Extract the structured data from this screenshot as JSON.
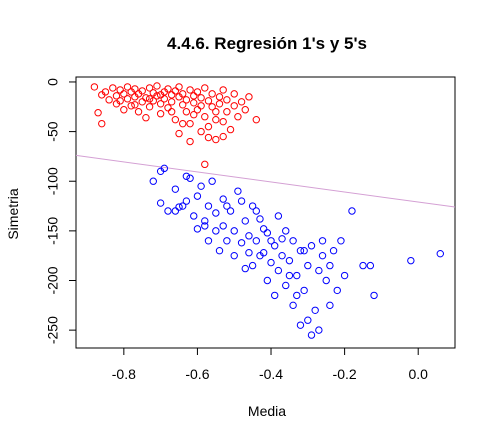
{
  "chart_data": {
    "type": "scatter",
    "title": "4.4.6. Regresión 1's y 5's",
    "xlabel": "Media",
    "ylabel": "Simetria",
    "xlim": [
      -0.93,
      0.1
    ],
    "ylim": [
      -268,
      5
    ],
    "x_ticks": [
      -0.8,
      -0.6,
      -0.4,
      -0.2,
      0.0
    ],
    "x_tick_labels": [
      "-0.8",
      "-0.6",
      "-0.4",
      "-0.2",
      "0.0"
    ],
    "y_ticks": [
      0,
      -50,
      -100,
      -150,
      -200,
      -250
    ],
    "y_tick_labels": [
      "0",
      "-50",
      "-100",
      "-150",
      "-200",
      "-250"
    ],
    "grid": false,
    "regression_line": {
      "color": "#d4a0d4",
      "points": [
        [
          -0.93,
          -74
        ],
        [
          0.1,
          -126
        ]
      ]
    },
    "series": [
      {
        "color": "#ff0000",
        "marker": "open-circle",
        "points": [
          [
            -0.88,
            -5
          ],
          [
            -0.87,
            -31
          ],
          [
            -0.86,
            -42
          ],
          [
            -0.85,
            -10
          ],
          [
            -0.84,
            -18
          ],
          [
            -0.83,
            -6
          ],
          [
            -0.82,
            -14
          ],
          [
            -0.82,
            -22
          ],
          [
            -0.81,
            -8
          ],
          [
            -0.8,
            -12
          ],
          [
            -0.8,
            -28
          ],
          [
            -0.79,
            -5
          ],
          [
            -0.79,
            -17
          ],
          [
            -0.78,
            -10
          ],
          [
            -0.78,
            -24
          ],
          [
            -0.77,
            -7
          ],
          [
            -0.77,
            -15
          ],
          [
            -0.76,
            -30
          ],
          [
            -0.76,
            -12
          ],
          [
            -0.75,
            -20
          ],
          [
            -0.75,
            -9
          ],
          [
            -0.74,
            -16
          ],
          [
            -0.74,
            -36
          ],
          [
            -0.73,
            -6
          ],
          [
            -0.73,
            -25
          ],
          [
            -0.72,
            -11
          ],
          [
            -0.72,
            -19
          ],
          [
            -0.71,
            -14
          ],
          [
            -0.71,
            -4
          ],
          [
            -0.7,
            -22
          ],
          [
            -0.7,
            -32
          ],
          [
            -0.69,
            -10
          ],
          [
            -0.69,
            -17
          ],
          [
            -0.68,
            -7
          ],
          [
            -0.68,
            -26
          ],
          [
            -0.67,
            -13
          ],
          [
            -0.67,
            -20
          ],
          [
            -0.66,
            -9
          ],
          [
            -0.66,
            -38
          ],
          [
            -0.65,
            -15
          ],
          [
            -0.65,
            -5
          ],
          [
            -0.64,
            -23
          ],
          [
            -0.64,
            -12
          ],
          [
            -0.63,
            -30
          ],
          [
            -0.63,
            -18
          ],
          [
            -0.62,
            -8
          ],
          [
            -0.62,
            -42
          ],
          [
            -0.61,
            -14
          ],
          [
            -0.61,
            -21
          ],
          [
            -0.6,
            -10
          ],
          [
            -0.6,
            -28
          ],
          [
            -0.59,
            -50
          ],
          [
            -0.59,
            -16
          ],
          [
            -0.58,
            -35
          ],
          [
            -0.58,
            -6
          ],
          [
            -0.57,
            -19
          ],
          [
            -0.57,
            -45
          ],
          [
            -0.56,
            -25
          ],
          [
            -0.56,
            -12
          ],
          [
            -0.55,
            -38
          ],
          [
            -0.55,
            -58
          ],
          [
            -0.54,
            -22
          ],
          [
            -0.54,
            -15
          ],
          [
            -0.53,
            -8
          ],
          [
            -0.53,
            -40
          ],
          [
            -0.52,
            -30
          ],
          [
            -0.52,
            -18
          ],
          [
            -0.51,
            -48
          ],
          [
            -0.5,
            -24
          ],
          [
            -0.5,
            -12
          ],
          [
            -0.49,
            -35
          ],
          [
            -0.48,
            -20
          ],
          [
            -0.47,
            -28
          ],
          [
            -0.46,
            -15
          ],
          [
            -0.44,
            -38
          ],
          [
            -0.86,
            -13
          ],
          [
            -0.81,
            -19
          ],
          [
            -0.77,
            -23
          ],
          [
            -0.73,
            -17
          ],
          [
            -0.7,
            -13
          ],
          [
            -0.67,
            -30
          ],
          [
            -0.64,
            -42
          ],
          [
            -0.61,
            -33
          ],
          [
            -0.59,
            -24
          ],
          [
            -0.57,
            -56
          ],
          [
            -0.55,
            -30
          ],
          [
            -0.58,
            -83
          ],
          [
            -0.65,
            -52
          ],
          [
            -0.62,
            -60
          ],
          [
            -0.53,
            -55
          ]
        ]
      },
      {
        "color": "#0000ff",
        "marker": "open-circle",
        "points": [
          [
            -0.72,
            -100
          ],
          [
            -0.7,
            -90
          ],
          [
            -0.69,
            -87
          ],
          [
            -0.7,
            -122
          ],
          [
            -0.68,
            -130
          ],
          [
            -0.66,
            -108
          ],
          [
            -0.65,
            -126
          ],
          [
            -0.64,
            -125
          ],
          [
            -0.63,
            -120
          ],
          [
            -0.62,
            -97
          ],
          [
            -0.61,
            -135
          ],
          [
            -0.6,
            -148
          ],
          [
            -0.6,
            -115
          ],
          [
            -0.59,
            -105
          ],
          [
            -0.58,
            -140
          ],
          [
            -0.57,
            -125
          ],
          [
            -0.57,
            -160
          ],
          [
            -0.56,
            -100
          ],
          [
            -0.55,
            -150
          ],
          [
            -0.55,
            -132
          ],
          [
            -0.54,
            -170
          ],
          [
            -0.53,
            -145
          ],
          [
            -0.53,
            -118
          ],
          [
            -0.52,
            -160
          ],
          [
            -0.51,
            -130
          ],
          [
            -0.5,
            -175
          ],
          [
            -0.5,
            -150
          ],
          [
            -0.49,
            -110
          ],
          [
            -0.48,
            -162
          ],
          [
            -0.47,
            -140
          ],
          [
            -0.47,
            -188
          ],
          [
            -0.46,
            -155
          ],
          [
            -0.45,
            -125
          ],
          [
            -0.45,
            -185
          ],
          [
            -0.44,
            -160
          ],
          [
            -0.43,
            -138
          ],
          [
            -0.42,
            -172
          ],
          [
            -0.42,
            -148
          ],
          [
            -0.41,
            -200
          ],
          [
            -0.4,
            -182
          ],
          [
            -0.4,
            -160
          ],
          [
            -0.39,
            -165
          ],
          [
            -0.38,
            -135
          ],
          [
            -0.38,
            -190
          ],
          [
            -0.37,
            -175
          ],
          [
            -0.36,
            -205
          ],
          [
            -0.36,
            -150
          ],
          [
            -0.35,
            -180
          ],
          [
            -0.34,
            -160
          ],
          [
            -0.34,
            -225
          ],
          [
            -0.33,
            -195
          ],
          [
            -0.32,
            -170
          ],
          [
            -0.32,
            -245
          ],
          [
            -0.31,
            -210
          ],
          [
            -0.3,
            -185
          ],
          [
            -0.3,
            -240
          ],
          [
            -0.29,
            -165
          ],
          [
            -0.28,
            -230
          ],
          [
            -0.27,
            -190
          ],
          [
            -0.27,
            -250
          ],
          [
            -0.26,
            -175
          ],
          [
            -0.25,
            -200
          ],
          [
            -0.24,
            -185
          ],
          [
            -0.23,
            -170
          ],
          [
            -0.22,
            -210
          ],
          [
            -0.21,
            -160
          ],
          [
            -0.2,
            -195
          ],
          [
            -0.18,
            -130
          ],
          [
            -0.15,
            -185
          ],
          [
            -0.13,
            -185
          ],
          [
            -0.12,
            -215
          ],
          [
            -0.02,
            -180
          ],
          [
            0.06,
            -173
          ],
          [
            -0.63,
            -95
          ],
          [
            -0.58,
            -145
          ],
          [
            -0.52,
            -125
          ],
          [
            -0.46,
            -172
          ],
          [
            -0.41,
            -152
          ],
          [
            -0.37,
            -158
          ],
          [
            -0.33,
            -215
          ],
          [
            -0.31,
            -170
          ],
          [
            -0.26,
            -160
          ],
          [
            -0.24,
            -225
          ],
          [
            -0.29,
            -255
          ],
          [
            -0.35,
            -195
          ],
          [
            -0.44,
            -130
          ],
          [
            -0.39,
            -215
          ],
          [
            -0.66,
            -130
          ],
          [
            -0.48,
            -120
          ],
          [
            -0.43,
            -175
          ]
        ]
      }
    ]
  }
}
